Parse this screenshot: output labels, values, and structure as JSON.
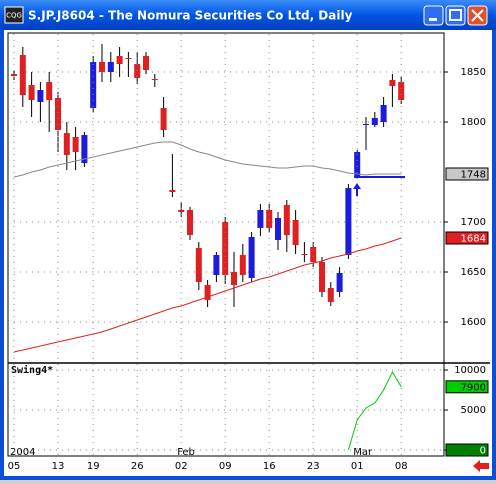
{
  "window_title": "S.JP.J8604 - The Nomura Securities Co Ltd, Daily",
  "chart_data": [
    {
      "type": "candlestick",
      "categories": [
        "05",
        null,
        null,
        null,
        null,
        "13",
        null,
        null,
        null,
        "19",
        null,
        null,
        null,
        null,
        "26",
        null,
        null,
        null,
        null,
        "02",
        null,
        null,
        null,
        null,
        "09",
        null,
        null,
        null,
        null,
        "16",
        null,
        null,
        null,
        null,
        "23",
        null,
        null,
        null,
        null,
        "01",
        null,
        null,
        null,
        null,
        "08"
      ],
      "months": [
        "2004",
        null,
        null,
        null,
        null,
        null,
        null,
        null,
        null,
        null,
        null,
        null,
        null,
        null,
        null,
        null,
        null,
        null,
        null,
        "Feb",
        null,
        null,
        null,
        null,
        null,
        null,
        null,
        null,
        null,
        null,
        null,
        null,
        null,
        null,
        null,
        null,
        null,
        null,
        null,
        "Mar",
        null,
        null,
        null,
        null,
        null
      ],
      "open": [
        1848,
        1867,
        1837,
        1820,
        1840,
        1824,
        1789,
        1785,
        1759,
        1814,
        1860,
        1850,
        1866,
        1864,
        1858,
        1866,
        1843,
        1814,
        1732,
        1712,
        1712,
        1674,
        1637,
        1647,
        1700,
        1650,
        1667,
        1644,
        1694,
        1712,
        1682,
        1717,
        1702,
        1668,
        1675,
        1660,
        1634,
        1630,
        1667,
        1744,
        1797,
        1797,
        1800,
        1842,
        1840
      ],
      "high": [
        1852,
        1875,
        1850,
        1840,
        1850,
        1830,
        1800,
        1795,
        1790,
        1866,
        1878,
        1870,
        1875,
        1870,
        1870,
        1870,
        1848,
        1825,
        1768,
        1720,
        1715,
        1680,
        1642,
        1670,
        1705,
        1670,
        1678,
        1690,
        1718,
        1718,
        1710,
        1722,
        1712,
        1680,
        1680,
        1665,
        1640,
        1655,
        1738,
        1772,
        1805,
        1810,
        1825,
        1848,
        1845
      ],
      "low": [
        1842,
        1815,
        1805,
        1800,
        1790,
        1770,
        1752,
        1752,
        1755,
        1810,
        1840,
        1840,
        1845,
        1845,
        1838,
        1848,
        1835,
        1785,
        1725,
        1705,
        1682,
        1632,
        1615,
        1640,
        1638,
        1615,
        1640,
        1640,
        1686,
        1690,
        1672,
        1670,
        1668,
        1660,
        1655,
        1625,
        1616,
        1625,
        1663,
        1744,
        1772,
        1795,
        1795,
        1815,
        1818
      ],
      "close": [
        1846,
        1827,
        1822,
        1832,
        1822,
        1792,
        1767,
        1770,
        1787,
        1860,
        1850,
        1860,
        1858,
        1863,
        1844,
        1852,
        1842,
        1792,
        1730,
        1710,
        1687,
        1640,
        1622,
        1667,
        1647,
        1637,
        1647,
        1685,
        1712,
        1694,
        1704,
        1687,
        1677,
        1667,
        1660,
        1630,
        1620,
        1649,
        1734,
        1770,
        1798,
        1804,
        1817,
        1836,
        1822
      ],
      "up_color": "#1c1ce0",
      "down_color": "#e02020",
      "series": [
        {
          "color": "#888888",
          "values": [
            1745,
            1747,
            1750,
            1752,
            1755,
            1757,
            1759,
            1761,
            1763,
            1765,
            1767,
            1769,
            1771,
            1773,
            1775,
            1777,
            1779,
            1780,
            1780,
            1777,
            1773,
            1770,
            1768,
            1765,
            1762,
            1760,
            1758,
            1757,
            1756,
            1755,
            1754,
            1754,
            1755,
            1756,
            1756,
            1754,
            1753,
            1751,
            1749,
            1748,
            1747,
            1748,
            1748,
            1748,
            1748
          ]
        },
        {
          "color": "#e02020",
          "values": [
            1570,
            1572,
            1574,
            1576,
            1578,
            1580,
            1582,
            1584,
            1586,
            1588,
            1590,
            1593,
            1596,
            1599,
            1602,
            1605,
            1608,
            1611,
            1614,
            1616,
            1619,
            1622,
            1625,
            1628,
            1631,
            1634,
            1637,
            1640,
            1643,
            1645,
            1648,
            1651,
            1654,
            1657,
            1659,
            1661,
            1664,
            1666,
            1668,
            1671,
            1673,
            1676,
            1678,
            1681,
            1684
          ]
        }
      ],
      "hline": {
        "value": 1745,
        "color": "#1c1ce0"
      },
      "ylim": [
        1560,
        1888
      ],
      "yticks": [
        1600,
        1650,
        1700,
        1800,
        1850
      ],
      "grid": true
    },
    {
      "type": "line",
      "title": "Swing4*",
      "series": [
        {
          "color": "#00cc00",
          "values": [
            null,
            null,
            null,
            null,
            null,
            null,
            null,
            null,
            null,
            null,
            null,
            null,
            null,
            null,
            null,
            null,
            null,
            null,
            null,
            null,
            null,
            null,
            null,
            null,
            null,
            null,
            null,
            null,
            null,
            null,
            null,
            null,
            null,
            null,
            null,
            null,
            null,
            null,
            0,
            3750,
            5250,
            5875,
            7500,
            9750,
            7900
          ]
        }
      ],
      "ylim": [
        -625,
        10750
      ],
      "yticks": [
        0,
        5000,
        10000
      ],
      "grid": true
    }
  ]
}
